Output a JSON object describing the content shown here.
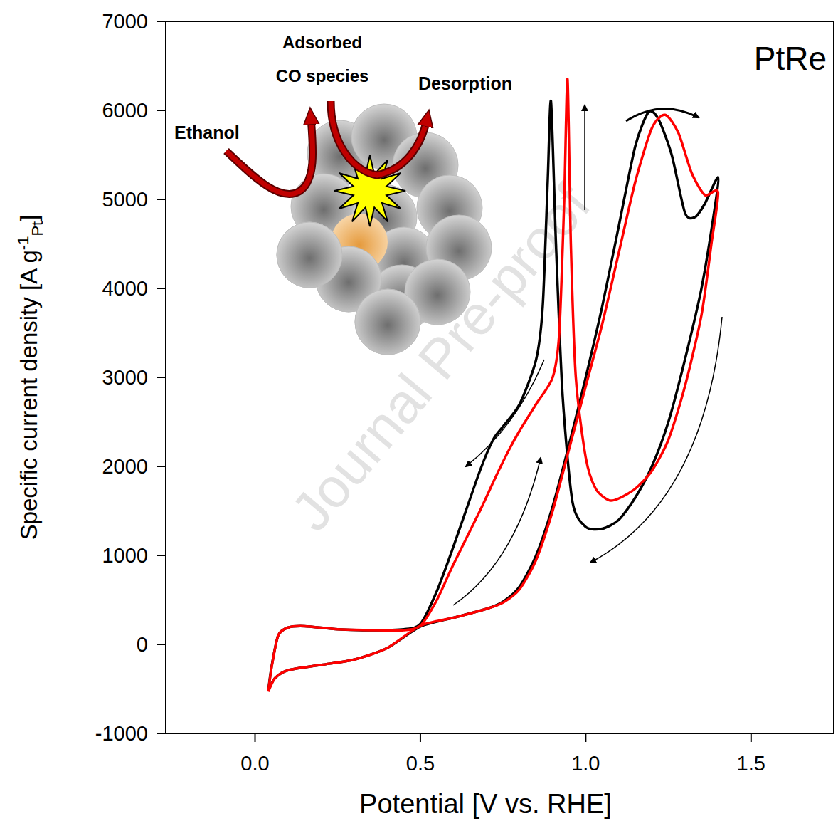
{
  "chart_data": {
    "type": "line",
    "title": "PtRe",
    "x_label": "Potential [V vs. RHE]",
    "y_label": {
      "text": "Specific current density [A g",
      "superscript": "-1",
      "subscript": "Pt",
      "end": "]"
    },
    "xlim": [
      -0.27,
      1.75
    ],
    "ylim": [
      -1000,
      7000
    ],
    "xticks": [
      {
        "value": 0,
        "label": "0.0"
      },
      0.5,
      {
        "value": 1,
        "label": "1.0"
      },
      1.5
    ],
    "yticks": [
      -1000,
      0,
      1000,
      2000,
      3000,
      4000,
      5000,
      6000,
      7000
    ],
    "grid": false,
    "series": [
      {
        "color": "#000000",
        "x": [
          0.04,
          0.06,
          0.1,
          0.2,
          0.3,
          0.4,
          0.5,
          0.6,
          0.7,
          0.75,
          0.8,
          0.85,
          0.9,
          0.95,
          1.0,
          1.05,
          1.1,
          1.15,
          1.19,
          1.22,
          1.26,
          1.3,
          1.33,
          1.36,
          1.4,
          1.39,
          1.35,
          1.3,
          1.25,
          1.2,
          1.15,
          1.1,
          1.05,
          1.0,
          0.96,
          0.93,
          0.91,
          0.895,
          0.885,
          0.87,
          0.85,
          0.8,
          0.75,
          0.72,
          0.68,
          0.6,
          0.55,
          0.5,
          0.45,
          0.35,
          0.25,
          0.15,
          0.1,
          0.07,
          0.05,
          0.04
        ],
        "values": [
          -520,
          -380,
          -290,
          -230,
          -170,
          -40,
          200,
          300,
          400,
          480,
          650,
          1000,
          1550,
          2250,
          3000,
          3800,
          4700,
          5600,
          5980,
          5900,
          5500,
          4850,
          4800,
          4950,
          5250,
          4900,
          4000,
          3200,
          2500,
          2000,
          1650,
          1400,
          1300,
          1320,
          1600,
          2800,
          4500,
          6100,
          5200,
          3800,
          3200,
          2700,
          2450,
          2300,
          1950,
          1100,
          600,
          230,
          170,
          160,
          170,
          205,
          190,
          100,
          -250,
          -520
        ]
      },
      {
        "color": "#ff0000",
        "x": [
          0.04,
          0.06,
          0.1,
          0.2,
          0.3,
          0.4,
          0.5,
          0.6,
          0.7,
          0.75,
          0.8,
          0.85,
          0.9,
          0.95,
          1.0,
          1.05,
          1.1,
          1.15,
          1.2,
          1.24,
          1.28,
          1.32,
          1.36,
          1.4,
          1.38,
          1.35,
          1.3,
          1.25,
          1.2,
          1.15,
          1.1,
          1.07,
          1.03,
          1.0,
          0.97,
          0.955,
          0.945,
          0.935,
          0.92,
          0.9,
          0.85,
          0.8,
          0.77,
          0.73,
          0.68,
          0.6,
          0.55,
          0.5,
          0.45,
          0.35,
          0.25,
          0.15,
          0.1,
          0.07,
          0.05,
          0.04
        ],
        "values": [
          -530,
          -380,
          -290,
          -230,
          -170,
          -40,
          210,
          300,
          400,
          470,
          620,
          950,
          1500,
          2200,
          2900,
          3600,
          4400,
          5200,
          5800,
          5950,
          5750,
          5300,
          5050,
          5080,
          4500,
          3700,
          2900,
          2300,
          1950,
          1750,
          1640,
          1620,
          1750,
          2100,
          3000,
          4500,
          6350,
          5000,
          3500,
          3000,
          2700,
          2400,
          2200,
          1900,
          1500,
          900,
          500,
          210,
          160,
          160,
          170,
          205,
          190,
          100,
          -260,
          -530
        ]
      }
    ],
    "annotations": {
      "watermark": "Journal Pre-proof",
      "inset": {
        "ethanol": "Ethanol",
        "adsorbed": [
          "Adsorbed",
          "CO species"
        ],
        "desorption": "Desorption"
      }
    }
  }
}
